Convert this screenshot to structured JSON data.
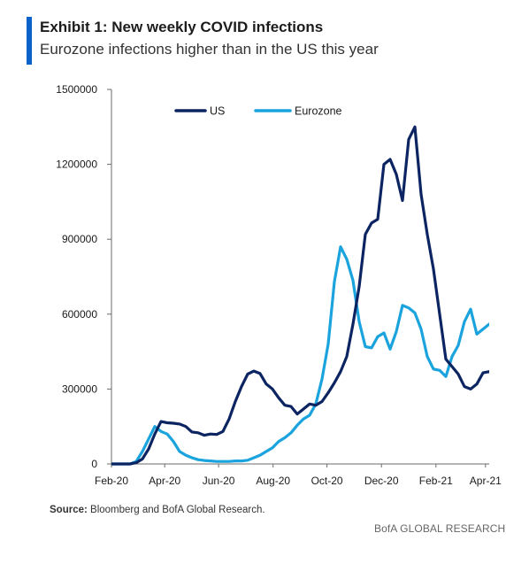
{
  "header": {
    "title": "Exhibit 1: New weekly COVID infections",
    "subtitle": "Eurozone infections higher than in the US this year"
  },
  "footer": {
    "source_label": "Source:",
    "source_text": " Bloomberg and BofA Global Research.",
    "brand": "BofA GLOBAL RESEARCH"
  },
  "colors": {
    "accent": "#0a63c9",
    "us": "#0c2461",
    "eurozone": "#1aa3dd"
  },
  "chart_data": {
    "type": "line",
    "title": "Exhibit 1: New weekly COVID infections",
    "subtitle": "Eurozone infections higher than in the US this year",
    "xlabel": "",
    "ylabel": "",
    "ylim": [
      0,
      1500000
    ],
    "yticks": [
      0,
      300000,
      600000,
      900000,
      1200000,
      1500000
    ],
    "ytick_labels": [
      "0",
      "300000",
      "600000",
      "900000",
      "1200000",
      "1500000"
    ],
    "xlim_weeks": [
      0,
      61
    ],
    "xticks": [
      {
        "week": 0,
        "label": "Feb-20"
      },
      {
        "week": 8.6,
        "label": "Apr-20"
      },
      {
        "week": 17.3,
        "label": "Jun-20"
      },
      {
        "week": 26.1,
        "label": "Aug-20"
      },
      {
        "week": 34.8,
        "label": "Oct-20"
      },
      {
        "week": 43.6,
        "label": "Dec-20"
      },
      {
        "week": 52.4,
        "label": "Feb-21"
      },
      {
        "week": 60.4,
        "label": "Apr-21"
      }
    ],
    "grid": false,
    "legend_position": "top-center",
    "series": [
      {
        "name": "US",
        "color": "#0c2461",
        "points": [
          [
            0,
            0
          ],
          [
            3,
            0
          ],
          [
            4,
            5000
          ],
          [
            5,
            20000
          ],
          [
            6,
            60000
          ],
          [
            7,
            120000
          ],
          [
            8,
            170000
          ],
          [
            9,
            165000
          ],
          [
            10,
            163000
          ],
          [
            11,
            160000
          ],
          [
            12,
            150000
          ],
          [
            13,
            128000
          ],
          [
            14,
            125000
          ],
          [
            15,
            115000
          ],
          [
            16,
            120000
          ],
          [
            17,
            118000
          ],
          [
            18,
            130000
          ],
          [
            19,
            180000
          ],
          [
            20,
            250000
          ],
          [
            21,
            310000
          ],
          [
            22,
            360000
          ],
          [
            23,
            372000
          ],
          [
            24,
            362000
          ],
          [
            25,
            320000
          ],
          [
            26,
            300000
          ],
          [
            27,
            265000
          ],
          [
            28,
            235000
          ],
          [
            29,
            230000
          ],
          [
            30,
            200000
          ],
          [
            31,
            220000
          ],
          [
            32,
            240000
          ],
          [
            33,
            235000
          ],
          [
            34,
            250000
          ],
          [
            35,
            285000
          ],
          [
            36,
            325000
          ],
          [
            37,
            370000
          ],
          [
            38,
            430000
          ],
          [
            39,
            560000
          ],
          [
            40,
            710000
          ],
          [
            41,
            920000
          ],
          [
            42,
            965000
          ],
          [
            43,
            980000
          ],
          [
            44,
            1200000
          ],
          [
            45,
            1220000
          ],
          [
            46,
            1160000
          ],
          [
            47,
            1055000
          ],
          [
            48,
            1300000
          ],
          [
            49,
            1350000
          ],
          [
            50,
            1080000
          ],
          [
            51,
            920000
          ],
          [
            52,
            780000
          ],
          [
            53,
            600000
          ],
          [
            54,
            420000
          ],
          [
            55,
            390000
          ],
          [
            56,
            360000
          ],
          [
            57,
            310000
          ],
          [
            58,
            300000
          ],
          [
            59,
            320000
          ],
          [
            60,
            365000
          ],
          [
            61,
            370000
          ],
          [
            62,
            350000
          ]
        ]
      },
      {
        "name": "Eurozone",
        "color": "#1aa3dd",
        "points": [
          [
            0,
            0
          ],
          [
            3,
            0
          ],
          [
            4,
            10000
          ],
          [
            5,
            50000
          ],
          [
            6,
            100000
          ],
          [
            7,
            150000
          ],
          [
            8,
            130000
          ],
          [
            9,
            120000
          ],
          [
            10,
            90000
          ],
          [
            11,
            50000
          ],
          [
            12,
            35000
          ],
          [
            13,
            25000
          ],
          [
            14,
            17000
          ],
          [
            15,
            14000
          ],
          [
            16,
            12000
          ],
          [
            17,
            10000
          ],
          [
            18,
            10000
          ],
          [
            19,
            10000
          ],
          [
            20,
            12000
          ],
          [
            21,
            12000
          ],
          [
            22,
            15000
          ],
          [
            23,
            25000
          ],
          [
            24,
            35000
          ],
          [
            25,
            50000
          ],
          [
            26,
            65000
          ],
          [
            27,
            90000
          ],
          [
            28,
            105000
          ],
          [
            29,
            125000
          ],
          [
            30,
            155000
          ],
          [
            31,
            180000
          ],
          [
            32,
            195000
          ],
          [
            33,
            240000
          ],
          [
            34,
            340000
          ],
          [
            35,
            480000
          ],
          [
            36,
            730000
          ],
          [
            37,
            870000
          ],
          [
            38,
            820000
          ],
          [
            39,
            735000
          ],
          [
            40,
            570000
          ],
          [
            41,
            470000
          ],
          [
            42,
            465000
          ],
          [
            43,
            510000
          ],
          [
            44,
            525000
          ],
          [
            45,
            460000
          ],
          [
            46,
            530000
          ],
          [
            47,
            635000
          ],
          [
            48,
            625000
          ],
          [
            49,
            605000
          ],
          [
            50,
            540000
          ],
          [
            51,
            430000
          ],
          [
            52,
            380000
          ],
          [
            53,
            375000
          ],
          [
            54,
            350000
          ],
          [
            55,
            430000
          ],
          [
            56,
            475000
          ],
          [
            57,
            570000
          ],
          [
            58,
            620000
          ],
          [
            59,
            520000
          ],
          [
            60,
            540000
          ],
          [
            61,
            560000
          ]
        ]
      }
    ]
  }
}
